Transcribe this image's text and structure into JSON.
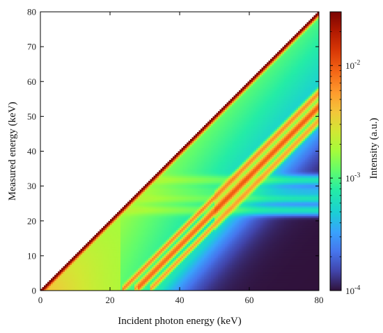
{
  "chart_data": {
    "type": "heatmap",
    "title": "",
    "xlabel": "Incident photon energy (keV)",
    "ylabel": "Measured energy (keV)",
    "xlim": [
      0,
      80
    ],
    "ylim": [
      0,
      80
    ],
    "x_ticks": [
      0,
      20,
      40,
      60,
      80
    ],
    "y_ticks": [
      0,
      10,
      20,
      30,
      40,
      50,
      60,
      70,
      80
    ],
    "x_tick_labels": [
      "0",
      "20",
      "40",
      "60",
      "80"
    ],
    "y_tick_labels": [
      "0",
      "10",
      "20",
      "30",
      "40",
      "50",
      "60",
      "70",
      "80"
    ],
    "colorbar": {
      "label": "Intensity (a.u.)",
      "scale": "log",
      "range": [
        0.0001,
        0.03
      ],
      "tick_values": [
        0.0001,
        0.001,
        0.01
      ],
      "tick_labels": [
        {
          "base": "10",
          "exp": "-4"
        },
        {
          "base": "10",
          "exp": "-3"
        },
        {
          "base": "10",
          "exp": "-2"
        }
      ],
      "colormap": "turbo"
    },
    "features": {
      "full_energy_peak": {
        "relation": "y = x",
        "intensity": 0.03
      },
      "escape_peaks": {
        "offsets_keV": [
          23.2,
          26.5,
          27.5,
          31.0
        ],
        "intensity": 0.006
      },
      "fluorescence_lines_keV": [
        23.2,
        26.5,
        28.8,
        31.8
      ],
      "region_below_diagonal_background": 0.0001
    }
  }
}
